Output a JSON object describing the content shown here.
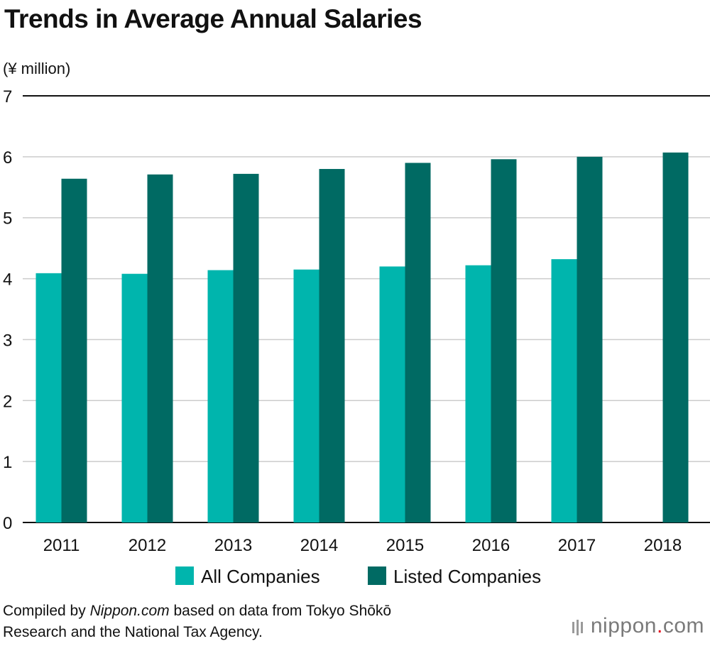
{
  "title": "Trends in Average Annual Salaries",
  "footer": {
    "prefix": "Compiled by ",
    "source_name": "Nippon.com",
    "suffix": " based on data from Tokyo Shōkō",
    "line2": "Research and the National Tax Agency."
  },
  "logo": {
    "name": "nippon",
    "dot": ".",
    "tld": "com"
  },
  "colors": {
    "all_companies": "#00b5ad",
    "listed_companies": "#006a63",
    "grid": "#cccccc",
    "axis": "#111111"
  },
  "chart_data": {
    "type": "bar",
    "title": "Trends in Average Annual Salaries",
    "ylabel": "(¥ million)",
    "xlabel": "",
    "ylim": [
      0,
      7
    ],
    "yticks": [
      "0",
      "1",
      "2",
      "3",
      "4",
      "5",
      "6",
      "7"
    ],
    "categories": [
      "2011",
      "2012",
      "2013",
      "2014",
      "2015",
      "2016",
      "2017",
      "2018"
    ],
    "series": [
      {
        "name": "All Companies",
        "values": [
          4.09,
          4.08,
          4.14,
          4.15,
          4.2,
          4.22,
          4.32,
          null
        ]
      },
      {
        "name": "Listed Companies",
        "values": [
          5.64,
          5.71,
          5.72,
          5.8,
          5.9,
          5.96,
          6.0,
          6.07
        ]
      }
    ],
    "legend": "bottom"
  }
}
